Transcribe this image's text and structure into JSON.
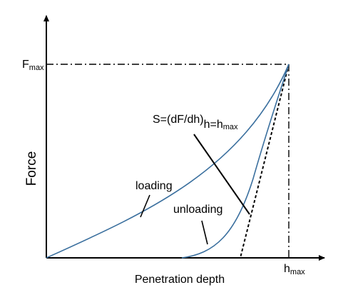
{
  "diagram": {
    "y_axis_title": "Force",
    "x_axis_title": "Penetration depth",
    "f_max": {
      "main": "F",
      "sub": "max"
    },
    "h_max": {
      "main": "h",
      "sub": "max"
    },
    "stiffness": {
      "prefix": "S=(dF/dh)",
      "h_sym": "h",
      "equals": "=h",
      "sub": "max"
    },
    "loading_label": "loading",
    "unloading_label": "unloading",
    "colors": {
      "curve": "#3a6f9e",
      "axes": "#000000",
      "lines": "#000000"
    }
  }
}
